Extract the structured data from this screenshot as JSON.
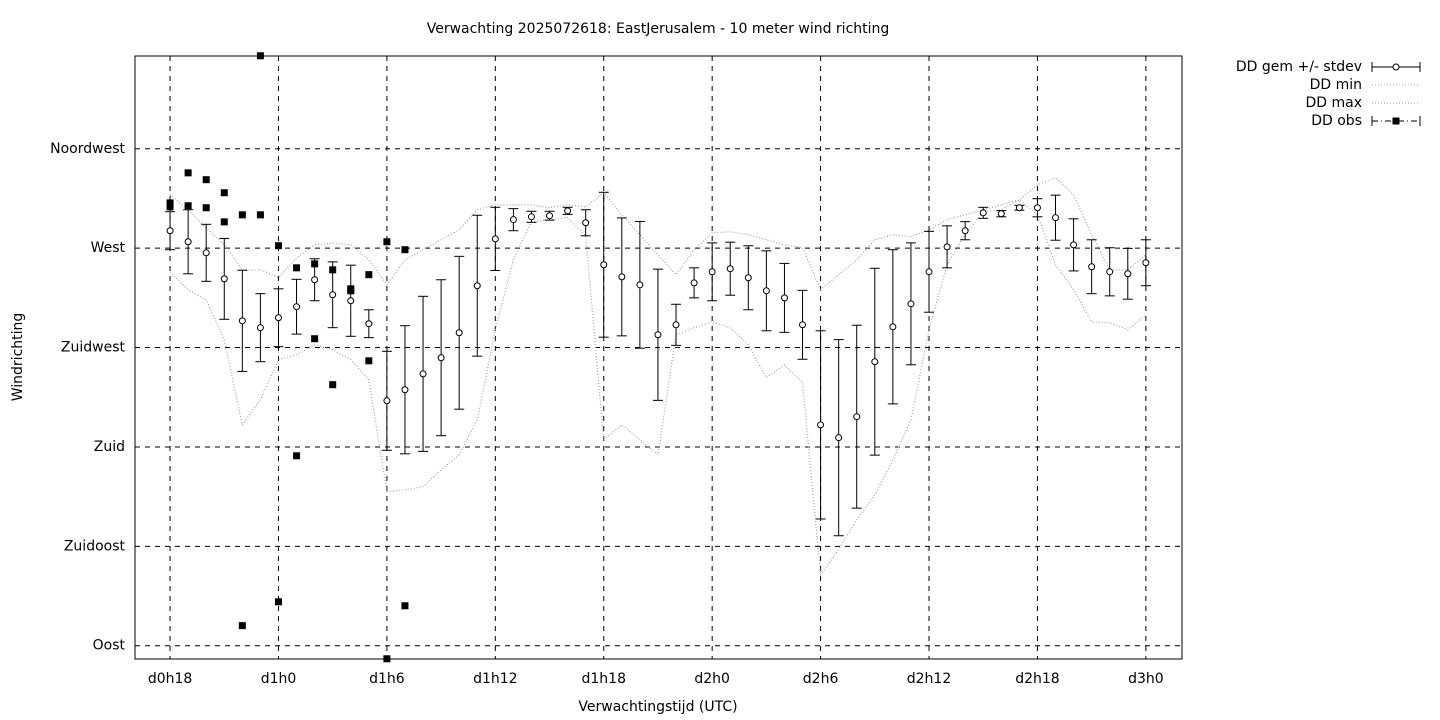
{
  "chart_data": {
    "type": "errorbar",
    "title": "Verwachting 2025072618: EastJerusalem - 10 meter wind richting",
    "x_label": "Verwachtingstijd (UTC)",
    "y_label": "Windrichting",
    "xlim": [
      16.06,
      74.0
    ],
    "ylim": [
      84,
      357
    ],
    "xticks": [
      {
        "value": 18,
        "label": "d0h18"
      },
      {
        "value": 24,
        "label": "d1h0"
      },
      {
        "value": 30,
        "label": "d1h6"
      },
      {
        "value": 36,
        "label": "d1h12"
      },
      {
        "value": 42,
        "label": "d1h18"
      },
      {
        "value": 48,
        "label": "d2h0"
      },
      {
        "value": 54,
        "label": "d2h6"
      },
      {
        "value": 60,
        "label": "d2h12"
      },
      {
        "value": 66,
        "label": "d2h18"
      },
      {
        "value": 72,
        "label": "d3h0"
      }
    ],
    "yticks": [
      {
        "value": 90,
        "label": "Oost"
      },
      {
        "value": 135,
        "label": "Zuidoost"
      },
      {
        "value": 180,
        "label": "Zuid"
      },
      {
        "value": 225,
        "label": "Zuidwest"
      },
      {
        "value": 270,
        "label": "West"
      },
      {
        "value": 315,
        "label": "Noordwest"
      }
    ],
    "grid": true,
    "legend": "outside-top-right",
    "x": [
      18,
      19,
      20,
      21,
      22,
      23,
      24,
      25,
      26,
      27,
      28,
      29,
      30,
      31,
      32,
      33,
      34,
      35,
      36,
      37,
      38,
      39,
      40,
      41,
      42,
      43,
      44,
      45,
      46,
      47,
      48,
      49,
      50,
      51,
      52,
      53,
      54,
      55,
      56,
      57,
      58,
      59,
      60,
      61,
      62,
      63,
      64,
      65,
      66,
      67,
      68,
      69,
      70,
      71,
      72
    ],
    "series": [
      {
        "name": "DD gem +/- stdev",
        "color": "#000000",
        "values": [
          277.9,
          272.9,
          267.9,
          256.1,
          237.1,
          234.0,
          238.5,
          243.5,
          255.7,
          248.9,
          246.2,
          235.8,
          200.9,
          205.9,
          213.1,
          220.4,
          231.7,
          253.0,
          274.2,
          282.9,
          284.2,
          284.7,
          286.9,
          281.5,
          262.5,
          257.0,
          253.4,
          230.8,
          235.3,
          254.3,
          259.3,
          260.7,
          256.6,
          250.7,
          247.5,
          235.3,
          190.0,
          184.2,
          193.7,
          218.6,
          234.4,
          244.8,
          259.3,
          270.6,
          277.9,
          286.0,
          285.6,
          288.3,
          288.3,
          283.8,
          271.5,
          261.6,
          259.3,
          258.4,
          263.4
        ],
        "stdev": [
          8.6,
          14.5,
          12.9,
          18.3,
          22.9,
          15.4,
          13.1,
          12.4,
          9.5,
          14.9,
          16.1,
          6.3,
          22.4,
          29.0,
          35.1,
          35.3,
          34.6,
          31.9,
          14.3,
          5.0,
          2.5,
          2.0,
          1.6,
          5.9,
          32.8,
          26.7,
          28.7,
          29.7,
          9.3,
          6.8,
          13.1,
          12.0,
          14.5,
          18.1,
          15.6,
          15.6,
          42.6,
          44.4,
          41.4,
          42.3,
          34.9,
          27.6,
          18.3,
          9.5,
          4.1,
          2.5,
          1.4,
          1.1,
          4.1,
          10.2,
          11.8,
          12.2,
          10.9,
          11.5,
          10.4
        ]
      },
      {
        "name": "DD min",
        "color": "#a0a0a0",
        "values": [
          259.3,
          251.2,
          246.6,
          228.5,
          190.0,
          201.4,
          219.5,
          221.7,
          226.3,
          224.0,
          219.5,
          210.4,
          159.7,
          160.6,
          162.0,
          169.7,
          176.5,
          192.3,
          233.1,
          264.7,
          281.9,
          282.9,
          283.8,
          275.6,
          183.3,
          190.0,
          183.3,
          176.5,
          230.8,
          234.0,
          236.7,
          234.0,
          226.3,
          211.3,
          217.2,
          209.1,
          122.1,
          133.5,
          147.0,
          158.4,
          174.2,
          192.3,
          233.1,
          262.5,
          276.1,
          286.5,
          287.4,
          291.9,
          285.1,
          262.5,
          251.2,
          236.7,
          236.2,
          233.1,
          239.8
        ]
      },
      {
        "name": "DD max",
        "color": "#a0a0a0",
        "values": [
          294.2,
          287.4,
          279.2,
          271.5,
          260.2,
          260.2,
          256.6,
          265.6,
          271.5,
          272.4,
          271.5,
          264.7,
          253.4,
          264.7,
          269.3,
          273.8,
          278.3,
          287.4,
          289.6,
          289.6,
          289.6,
          288.3,
          289.6,
          288.7,
          295.1,
          285.1,
          276.1,
          267.0,
          258.0,
          269.3,
          277.0,
          277.4,
          276.1,
          273.8,
          271.5,
          270.2,
          251.2,
          258.0,
          264.7,
          273.8,
          276.1,
          275.2,
          278.3,
          282.9,
          285.1,
          287.4,
          289.6,
          291.9,
          298.7,
          301.9,
          294.2,
          276.1,
          260.2,
          260.2,
          267.0
        ]
      },
      {
        "name": "DD obs",
        "color": "#000000",
        "x": [
          18,
          18,
          19,
          19,
          20,
          20,
          21,
          21,
          22,
          22,
          23,
          23,
          24,
          24,
          25,
          25,
          26,
          26,
          27,
          27,
          28,
          28,
          29,
          29,
          30,
          30,
          31,
          31
        ],
        "values": [
          290.5,
          288.7,
          304.1,
          289.2,
          301.0,
          288.3,
          295.1,
          281.9,
          285.1,
          99.1,
          357.1,
          285.1,
          271.1,
          109.9,
          261.1,
          176.0,
          262.9,
          229.0,
          260.2,
          208.2,
          251.6,
          250.7,
          258.0,
          219.0,
          272.9,
          84.1,
          269.3,
          108.1
        ]
      }
    ]
  }
}
